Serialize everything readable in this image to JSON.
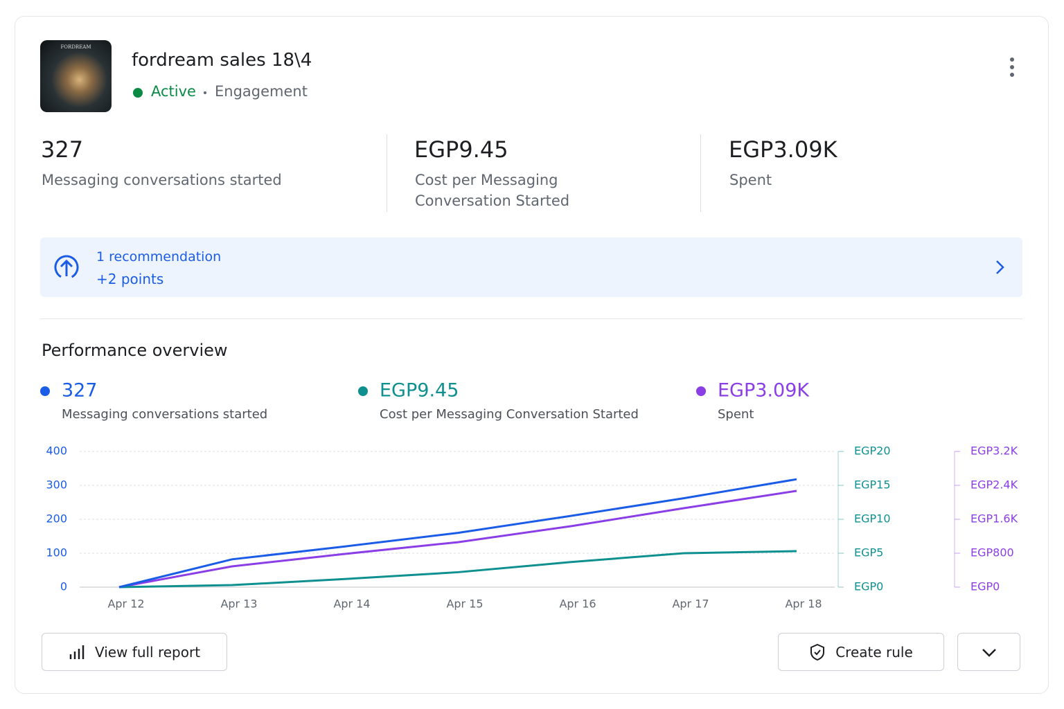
{
  "campaign": {
    "thumbnail_label": "FORDREAM",
    "name": "fordream sales 18\\4",
    "status": "Active",
    "objective": "Engagement"
  },
  "metrics": [
    {
      "value": "327",
      "label": "Messaging conversations started"
    },
    {
      "value": "EGP9.45",
      "label": "Cost per Messaging Conversation Started"
    },
    {
      "value": "EGP3.09K",
      "label": "Spent"
    }
  ],
  "recommendation": {
    "title": "1 recommendation",
    "subtitle": "+2 points"
  },
  "section_title": "Performance overview",
  "chart_data": {
    "type": "line",
    "categories": [
      "Apr 12",
      "Apr 13",
      "Apr 14",
      "Apr 15",
      "Apr 16",
      "Apr 17",
      "Apr 18"
    ],
    "series": [
      {
        "name": "Messaging conversations started",
        "legend_value": "327",
        "color": "#1a5ce6",
        "axis": "y",
        "values": [
          0,
          82,
          120,
          160,
          210,
          262,
          318
        ]
      },
      {
        "name": "Cost per Messaging Conversation Started",
        "legend_value": "EGP9.45",
        "color": "#0f9090",
        "axis": "y2",
        "values": [
          0,
          0.3,
          1.2,
          2.2,
          3.7,
          5.0,
          5.3
        ]
      },
      {
        "name": "Spent",
        "legend_value": "EGP3.09K",
        "color": "#8b3ee6",
        "axis": "y3",
        "values": [
          0,
          490,
          784,
          1060,
          1437,
          1861,
          2270
        ]
      }
    ],
    "ylim": [
      0,
      400
    ],
    "yticks": [
      0,
      100,
      200,
      300,
      400
    ],
    "y2lim": [
      0,
      20
    ],
    "y2ticks": [
      {
        "value": 0,
        "label": "EGP0"
      },
      {
        "value": 5,
        "label": "EGP5"
      },
      {
        "value": 10,
        "label": "EGP10"
      },
      {
        "value": 15,
        "label": "EGP15"
      },
      {
        "value": 20,
        "label": "EGP20"
      }
    ],
    "y3lim": [
      0,
      3200
    ],
    "y3ticks": [
      {
        "value": 0,
        "label": "EGP0"
      },
      {
        "value": 800,
        "label": "EGP800"
      },
      {
        "value": 1600,
        "label": "EGP1.6K"
      },
      {
        "value": 2400,
        "label": "EGP2.4K"
      },
      {
        "value": 3200,
        "label": "EGP3.2K"
      }
    ],
    "grid": true
  },
  "buttons": {
    "report": "View full report",
    "rule": "Create rule"
  }
}
